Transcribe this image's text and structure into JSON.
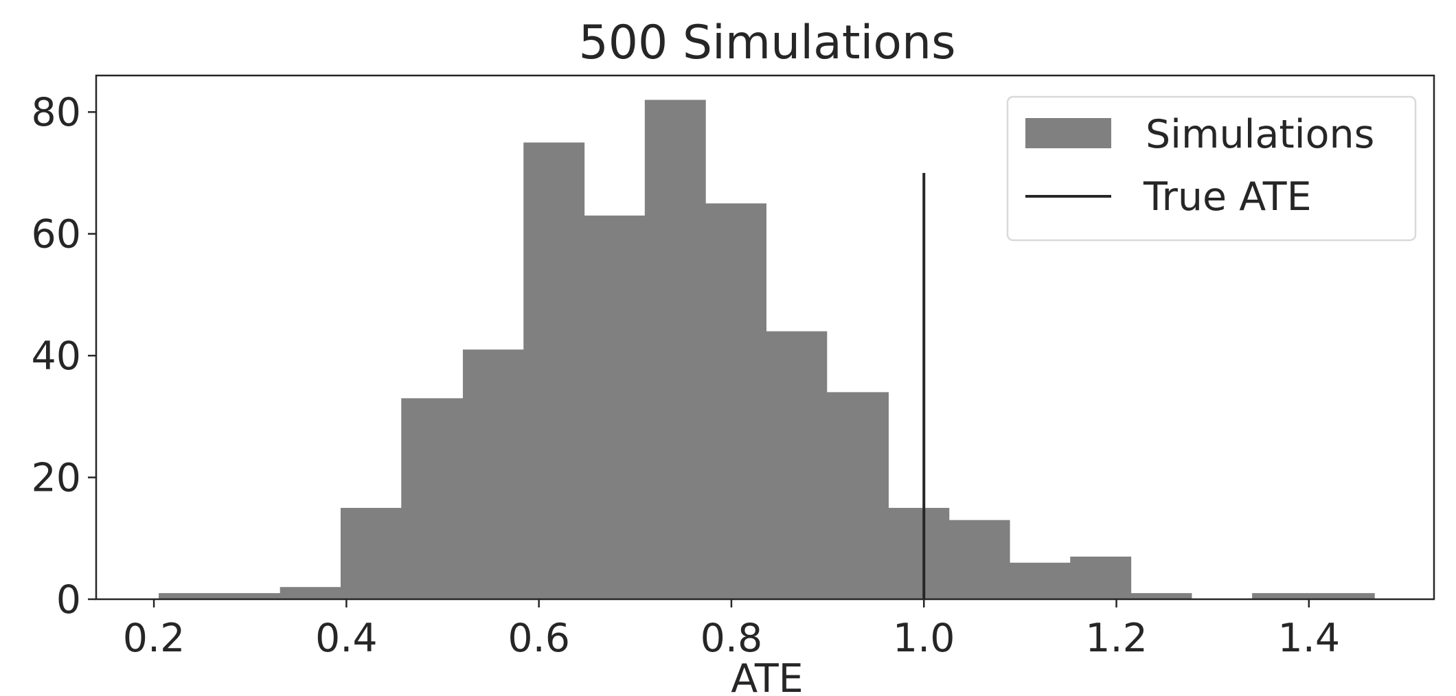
{
  "chart_data": {
    "type": "bar",
    "title": "500 Simulations",
    "xlabel": "ATE",
    "ylabel": "",
    "xlim": [
      0.14,
      1.53
    ],
    "ylim": [
      0,
      86
    ],
    "xticks": [
      "0.2",
      "0.4",
      "0.6",
      "0.8",
      "1.0",
      "1.2",
      "1.4"
    ],
    "yticks": [
      "0",
      "20",
      "40",
      "60",
      "80"
    ],
    "bin_edges": [
      0.205,
      0.268,
      0.331,
      0.394,
      0.457,
      0.521,
      0.584,
      0.647,
      0.71,
      0.773,
      0.836,
      0.899,
      0.963,
      1.026,
      1.089,
      1.152,
      1.215,
      1.278,
      1.341,
      1.405,
      1.468
    ],
    "counts": [
      1,
      1,
      2,
      15,
      33,
      41,
      75,
      63,
      82,
      65,
      44,
      34,
      15,
      13,
      6,
      7,
      1,
      0,
      1,
      1
    ],
    "bar_color": "#808080",
    "vline": {
      "x": 1.0,
      "y_max": 70,
      "color": "#262626"
    },
    "legend": {
      "position": "top-right",
      "entries": [
        {
          "label": "Simulations",
          "kind": "patch",
          "color": "#808080"
        },
        {
          "label": "True ATE",
          "kind": "line",
          "color": "#262626"
        }
      ]
    }
  }
}
